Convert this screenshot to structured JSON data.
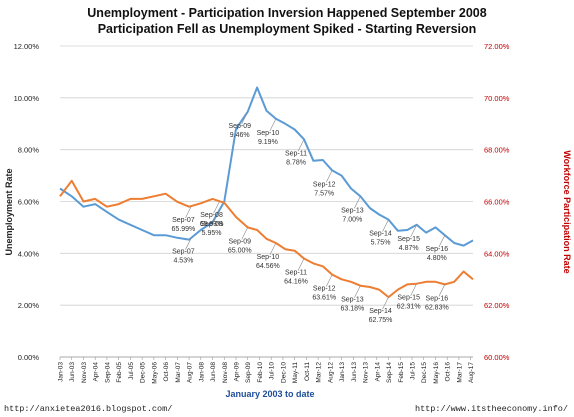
{
  "chart_data": {
    "type": "line",
    "title": "Unemployment - Participation Inversion Happened September 2008",
    "subtitle": "Participation Fell as Unemployment Spiked - Starting Reversion",
    "xlabel": "January 2003 to date",
    "ylabel_left": "Unemployment Rate",
    "ylabel_right": "Workforce Participation Rate",
    "left_axis": {
      "range": [
        0,
        12
      ],
      "ticks": [
        "0.00%",
        "2.00%",
        "4.00%",
        "6.00%",
        "8.00%",
        "10.00%",
        "12.00%"
      ]
    },
    "right_axis": {
      "range": [
        60,
        72
      ],
      "ticks": [
        "60.00%",
        "62.00%",
        "64.00%",
        "66.00%",
        "68.00%",
        "70.00%",
        "72.00%"
      ]
    },
    "x_ticks": [
      "Jan-03",
      "Jun-03",
      "Nov-03",
      "Apr-04",
      "Sep-04",
      "Feb-05",
      "Jul-05",
      "Dec-05",
      "May-06",
      "Oct-06",
      "Mar-07",
      "Aug-07",
      "Jan-08",
      "Jun-08",
      "Nov-08",
      "Apr-09",
      "Sep-09",
      "Feb-10",
      "Jul-10",
      "Dec-10",
      "May-11",
      "Oct-11",
      "Mar-12",
      "Aug-12",
      "Jan-13",
      "Jun-13",
      "Nov-13",
      "Apr-14",
      "Sep-14",
      "Feb-15",
      "Jul-15",
      "Dec-15",
      "May-16",
      "Oct-16",
      "Mar-17",
      "Aug-17"
    ],
    "grid": "horizontal",
    "series": [
      {
        "axis": "left",
        "color": "#5b9bd5",
        "x": [
          0,
          5,
          10,
          15,
          20,
          25,
          30,
          35,
          40,
          45,
          50,
          55,
          60,
          65,
          70,
          75,
          80,
          84,
          88,
          92,
          96,
          100,
          104,
          108,
          112,
          116,
          120,
          124,
          128,
          132,
          136,
          140,
          144,
          148,
          152,
          156,
          160,
          164,
          168,
          172,
          176
        ],
        "values": [
          6.5,
          6.2,
          5.8,
          5.9,
          5.6,
          5.3,
          5.1,
          4.9,
          4.7,
          4.7,
          4.6,
          4.53,
          4.9,
          5.2,
          6.0,
          8.8,
          9.46,
          10.4,
          9.5,
          9.19,
          9.0,
          8.78,
          8.4,
          7.57,
          7.6,
          7.2,
          7.0,
          6.5,
          6.2,
          5.75,
          5.5,
          5.3,
          4.87,
          4.9,
          5.1,
          4.8,
          5.0,
          4.7,
          4.4,
          4.3,
          4.5
        ]
      },
      {
        "axis": "right",
        "color": "#ed7d31",
        "x": [
          0,
          5,
          10,
          15,
          20,
          25,
          30,
          35,
          40,
          45,
          50,
          55,
          60,
          65,
          70,
          75,
          80,
          84,
          88,
          92,
          96,
          100,
          104,
          108,
          112,
          116,
          120,
          124,
          128,
          132,
          136,
          140,
          144,
          148,
          152,
          156,
          160,
          164,
          168,
          172,
          176
        ],
        "values": [
          66.2,
          66.8,
          66.0,
          66.1,
          65.8,
          65.9,
          66.1,
          66.1,
          66.2,
          66.3,
          65.99,
          65.8,
          65.93,
          66.1,
          65.95,
          65.4,
          65.0,
          64.9,
          64.56,
          64.4,
          64.16,
          64.1,
          63.8,
          63.61,
          63.5,
          63.18,
          63.0,
          62.9,
          62.75,
          62.7,
          62.6,
          62.31,
          62.6,
          62.8,
          62.83,
          62.9,
          62.9,
          62.8,
          62.9,
          63.3,
          63.0
        ]
      }
    ],
    "annotations": [
      {
        "series": 0,
        "x": 56,
        "lines": [
          "Sep-07",
          "4.53%"
        ]
      },
      {
        "series": 0,
        "x": 68,
        "lines": [
          "Sep-08",
          "5.95%"
        ]
      },
      {
        "series": 0,
        "x": 80,
        "lines": [
          "Sep-09",
          "9.46%"
        ]
      },
      {
        "series": 0,
        "x": 92,
        "lines": [
          "Sep-10",
          "9.19%"
        ]
      },
      {
        "series": 0,
        "x": 104,
        "lines": [
          "Sep-11",
          "8.78%"
        ]
      },
      {
        "series": 0,
        "x": 116,
        "lines": [
          "Sep-12",
          "7.57%"
        ]
      },
      {
        "series": 0,
        "x": 128,
        "lines": [
          "Sep-13",
          "7.00%"
        ]
      },
      {
        "series": 0,
        "x": 140,
        "lines": [
          "Sep-14",
          "5.75%"
        ]
      },
      {
        "series": 0,
        "x": 152,
        "lines": [
          "Sep-15",
          "4.87%"
        ]
      },
      {
        "series": 0,
        "x": 164,
        "lines": [
          "Sep-16",
          "4.80%"
        ]
      },
      {
        "series": 1,
        "x": 56,
        "lines": [
          "Sep-07",
          "65.99%"
        ]
      },
      {
        "series": 1,
        "x": 68,
        "lines": [
          "Sep-08",
          "65.93%"
        ]
      },
      {
        "series": 1,
        "x": 80,
        "lines": [
          "Sep-09",
          "65.00%"
        ]
      },
      {
        "series": 1,
        "x": 92,
        "lines": [
          "Sep-10",
          "64.56%"
        ]
      },
      {
        "series": 1,
        "x": 104,
        "lines": [
          "Sep-11",
          "64.16%"
        ]
      },
      {
        "series": 1,
        "x": 116,
        "lines": [
          "Sep-12",
          "63.61%"
        ]
      },
      {
        "series": 1,
        "x": 128,
        "lines": [
          "Sep-13",
          "63.18%"
        ]
      },
      {
        "series": 1,
        "x": 140,
        "lines": [
          "Sep-14",
          "62.75%"
        ]
      },
      {
        "series": 1,
        "x": 152,
        "lines": [
          "Sep-15",
          "62.31%"
        ]
      },
      {
        "series": 1,
        "x": 164,
        "lines": [
          "Sep-16",
          "62.83%"
        ]
      }
    ]
  },
  "footer": {
    "left": "http://anxietea2016.blogspot.com/",
    "right": "http://www.itstheeconomy.info/"
  },
  "colors": {
    "left_axis": "#222222",
    "right_axis": "#c00000",
    "xlabel": "#1f4e99"
  }
}
